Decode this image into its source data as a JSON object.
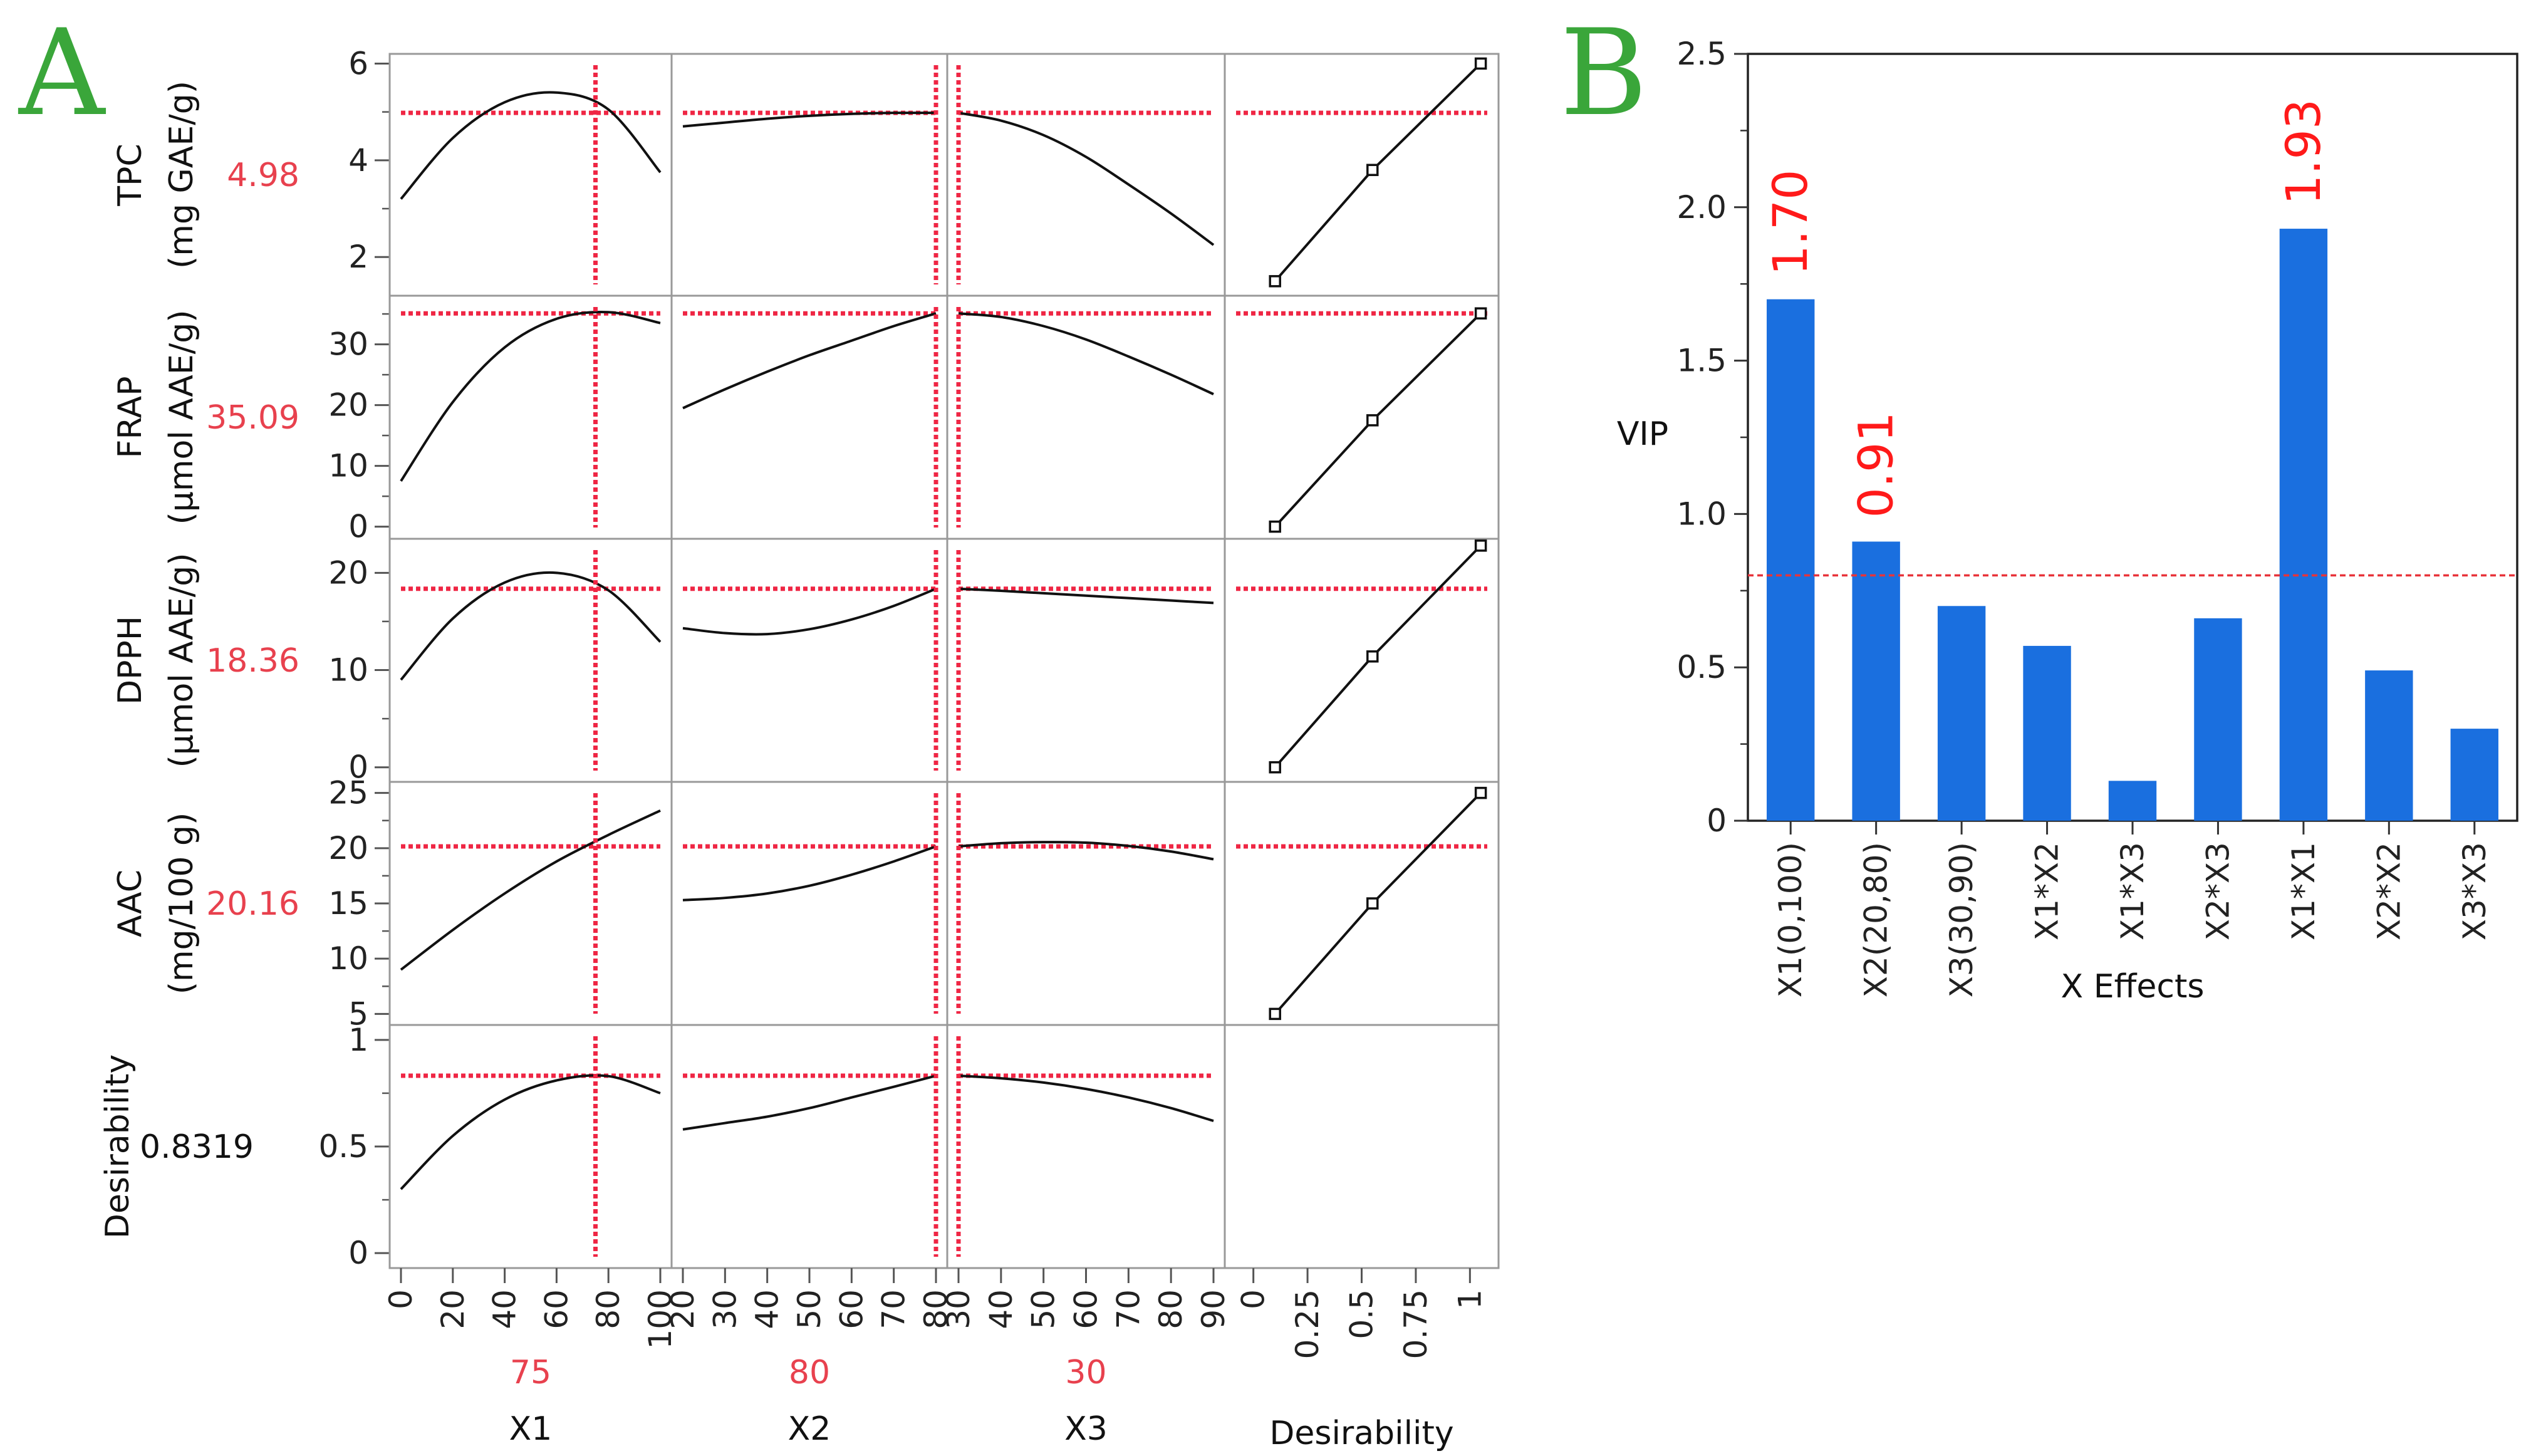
{
  "panel_a": {
    "letter": "A",
    "factors": [
      {
        "name": "X1",
        "current_label": "75",
        "current": 75,
        "range": [
          0,
          100
        ],
        "ticks": [
          0,
          20,
          40,
          60,
          80,
          100
        ]
      },
      {
        "name": "X2",
        "current_label": "80",
        "current": 80,
        "range": [
          20,
          80
        ],
        "ticks": [
          20,
          30,
          40,
          50,
          60,
          70,
          80
        ]
      },
      {
        "name": "X3",
        "current_label": "30",
        "current": 30,
        "range": [
          30,
          90
        ],
        "ticks": [
          30,
          40,
          50,
          60,
          70,
          80,
          90
        ]
      }
    ],
    "desirability_column": {
      "name": "Desirability",
      "ticks": [
        0,
        0.25,
        0.5,
        0.75,
        1
      ],
      "tick_labels": [
        "0",
        "0.25",
        "0.5",
        "0.75",
        "1"
      ],
      "range": [
        -0.08,
        1.08
      ]
    },
    "responses": [
      {
        "name": "TPC",
        "unit": "(mg GAE/g)",
        "current_label": "4.98",
        "current": 4.98,
        "ylim": [
          1.2,
          6.2
        ],
        "ticks": [
          2,
          4,
          6
        ],
        "curves": [
          [
            3.2,
            4.46,
            5.2,
            5.4,
            5.05,
            3.75
          ],
          [
            4.7,
            4.78,
            4.86,
            4.92,
            4.96,
            4.98,
            4.98
          ],
          [
            4.98,
            4.82,
            4.52,
            4.07,
            3.5,
            2.9,
            2.25
          ]
        ],
        "desirability_points": [
          [
            0.1,
            1.5
          ],
          [
            0.55,
            3.8
          ],
          [
            1.05,
            6.0
          ]
        ]
      },
      {
        "name": "FRAP",
        "unit": "(µmol AAE/g)",
        "current_label": "35.09",
        "current": 35.09,
        "ylim": [
          -2,
          38
        ],
        "ticks": [
          0,
          10,
          20,
          30
        ],
        "curves": [
          [
            7.5,
            20.5,
            29.5,
            34.2,
            35.3,
            33.5
          ],
          [
            19.5,
            22.6,
            25.5,
            28.2,
            30.6,
            33.0,
            35.09
          ],
          [
            35.09,
            34.5,
            33.0,
            30.8,
            28.0,
            25.0,
            21.8
          ]
        ],
        "desirability_points": [
          [
            0.1,
            0.0
          ],
          [
            0.55,
            17.5
          ],
          [
            1.05,
            35.09
          ]
        ]
      },
      {
        "name": "DPPH",
        "unit": "(µmol AAE/g)",
        "current_label": "18.36",
        "current": 18.36,
        "ylim": [
          -1.5,
          23.5
        ],
        "ticks": [
          0,
          10,
          20
        ],
        "curves": [
          [
            9.0,
            15.3,
            19.0,
            20.0,
            18.2,
            12.9
          ],
          [
            14.3,
            13.8,
            13.7,
            14.2,
            15.2,
            16.6,
            18.36
          ],
          [
            18.36,
            18.15,
            17.9,
            17.65,
            17.4,
            17.15,
            16.9
          ]
        ],
        "desirability_points": [
          [
            0.1,
            0.0
          ],
          [
            0.55,
            11.4
          ],
          [
            1.05,
            22.8
          ]
        ]
      },
      {
        "name": "AAC",
        "unit": "(mg/100 g)",
        "current_label": "20.16",
        "current": 20.16,
        "ylim": [
          4,
          26
        ],
        "ticks": [
          5,
          10,
          15,
          20,
          25
        ],
        "curves": [
          [
            9.0,
            12.6,
            15.9,
            18.8,
            21.2,
            23.4
          ],
          [
            15.3,
            15.5,
            15.9,
            16.6,
            17.6,
            18.8,
            20.16
          ],
          [
            20.16,
            20.45,
            20.55,
            20.5,
            20.2,
            19.7,
            19.0
          ]
        ],
        "desirability_points": [
          [
            0.1,
            5.0
          ],
          [
            0.55,
            15.0
          ],
          [
            1.05,
            25.0
          ]
        ]
      },
      {
        "name": "Desirability",
        "unit": "",
        "current_label": "0.8319",
        "current": 0.8319,
        "ylim": [
          -0.07,
          1.07
        ],
        "ticks": [
          0,
          0.5,
          1
        ],
        "curves": [
          [
            0.3,
            0.55,
            0.72,
            0.81,
            0.83,
            0.75
          ],
          [
            0.58,
            0.61,
            0.64,
            0.68,
            0.73,
            0.78,
            0.8319
          ],
          [
            0.8319,
            0.82,
            0.8,
            0.77,
            0.73,
            0.68,
            0.62
          ]
        ],
        "desirability_points": []
      }
    ]
  },
  "chart_data": {
    "type": "bar",
    "panel_letter": "B",
    "categories": [
      "X1(0,100)",
      "X2(20,80)",
      "X3(30,90)",
      "X1*X2",
      "X1*X3",
      "X2*X3",
      "X1*X1",
      "X2*X2",
      "X3*X3"
    ],
    "values": [
      1.7,
      0.91,
      0.7,
      0.57,
      0.13,
      0.66,
      1.93,
      0.49,
      0.3
    ],
    "value_labels": [
      "1.70",
      "0.91",
      "",
      "",
      "",
      "",
      "1.93",
      "",
      ""
    ],
    "xlabel": "X Effects",
    "ylabel": "VIP",
    "ylim": [
      0,
      2.5
    ],
    "yticks": [
      0,
      0.5,
      1.0,
      1.5,
      2.0,
      2.5
    ],
    "ytick_labels": [
      "0",
      "0.5",
      "1.0",
      "1.5",
      "2.0",
      "2.5"
    ],
    "threshold": 0.8,
    "grid": false,
    "bar_color": "#1a6fdf",
    "label_color": "#ff1a1a",
    "threshold_color": "#e8333a"
  },
  "colors": {
    "letter_green": "#3aa63a",
    "value_red": "#e8414e",
    "dotted_red": "#ef2644",
    "frame_gray": "#999999"
  }
}
